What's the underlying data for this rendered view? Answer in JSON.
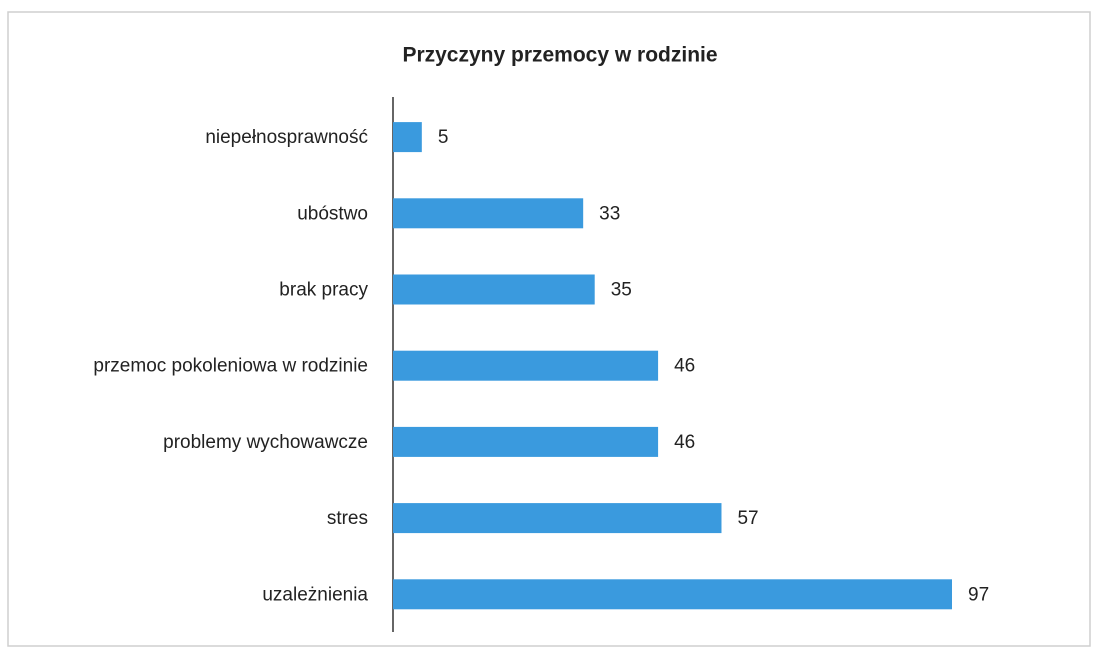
{
  "chart_data": {
    "type": "bar",
    "orientation": "horizontal",
    "title": "Przyczyny przemocy w rodzinie",
    "categories": [
      "niepełnosprawność",
      "ubóstwo",
      "brak pracy",
      "przemoc pokoleniowa w rodzinie",
      "problemy wychowawcze",
      "stres",
      "uzależnienia"
    ],
    "values": [
      5,
      33,
      35,
      46,
      46,
      57,
      97
    ],
    "color": "#3a9ade"
  }
}
